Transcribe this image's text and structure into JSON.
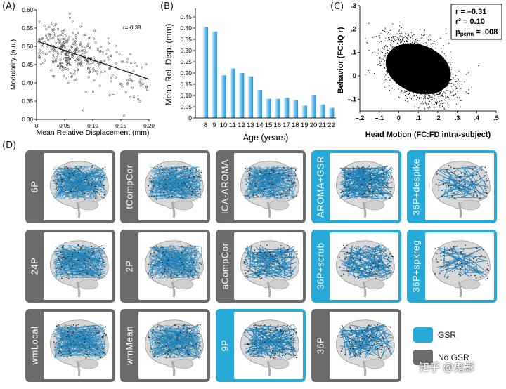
{
  "panel_a": {
    "label": "(A)",
    "annotation": "r=-0.38",
    "chart_data": {
      "type": "scatter",
      "xlabel": "Mean Relative Displacement (mm)",
      "ylabel": "Modularity (a.u.)",
      "xlim": [
        0,
        0.2
      ],
      "ylim": [
        0.3,
        0.6
      ],
      "xticks": [
        "0",
        "0.05",
        "0.10",
        "0.15",
        "0.20"
      ],
      "yticks": [
        "0.30",
        "0.35",
        "0.40",
        "0.45",
        "0.50",
        "0.55",
        "0.60"
      ],
      "fit_line": {
        "x": [
          0,
          0.2
        ],
        "y": [
          0.515,
          0.41
        ]
      },
      "points_description": "dense cloud of about 350 subjects, most with displacement 0.02-0.09 mm and modularity 0.40-0.56"
    }
  },
  "panel_b": {
    "label": "(B)",
    "chart_data": {
      "type": "bar",
      "title": "",
      "xlabel": "Age (years)",
      "ylabel": "Mean Rel. Disp. (mm)",
      "ylim": [
        0,
        0.45
      ],
      "yticks": [
        "0",
        "0.05",
        "0.10",
        "0.15",
        "0.20",
        "0.25",
        "0.30",
        "0.35",
        "0.40",
        "0.45"
      ],
      "categories": [
        "8",
        "9",
        "10",
        "11",
        "12",
        "13",
        "14",
        "15",
        "16",
        "17",
        "18",
        "19",
        "20",
        "21",
        "22"
      ],
      "values": [
        0.405,
        0.385,
        0.19,
        0.22,
        0.2,
        0.185,
        0.125,
        0.085,
        0.085,
        0.09,
        0.08,
        0.055,
        0.1,
        0.06,
        0.045
      ]
    }
  },
  "panel_c": {
    "label": "(C)",
    "stats": {
      "r": "r = –0.31",
      "r2": "r² = 0.10",
      "p_main": "p",
      "p_sub": "perm",
      "p_value": " = .008"
    },
    "chart_data": {
      "type": "scatter",
      "xlabel": "Head Motion (FC:FD intra-subject)",
      "ylabel": "Behavior (FC:IQ r)",
      "xlim": [
        -0.2,
        0.5
      ],
      "ylim": [
        -0.15,
        0.3
      ],
      "xticks": [
        "–.2",
        "–.1",
        "0",
        ".1",
        ".2",
        ".3",
        ".4",
        ".5"
      ],
      "yticks": [
        "–.1",
        "0",
        ".1",
        ".2",
        ".3"
      ],
      "points_description": "very dense black cloud of edges centred near x = 0.1, y = 0.03 with negative slope"
    }
  },
  "panel_d": {
    "label": "(D)",
    "tiles": [
      {
        "label": "6P",
        "gsr": false,
        "density": 1.0
      },
      {
        "label": "tCompCor",
        "gsr": false,
        "density": 1.0
      },
      {
        "label": "ICA-AROMA",
        "gsr": false,
        "density": 0.9
      },
      {
        "label": "AROMA+GSR",
        "gsr": true,
        "density": 0.55
      },
      {
        "label": "36P+despike",
        "gsr": true,
        "density": 0.12
      },
      {
        "label": "24P",
        "gsr": false,
        "density": 1.0
      },
      {
        "label": "2P",
        "gsr": false,
        "density": 0.95
      },
      {
        "label": "aCompCor",
        "gsr": false,
        "density": 0.35
      },
      {
        "label": "36P+scrub",
        "gsr": true,
        "density": 0.3
      },
      {
        "label": "36P+spkreg",
        "gsr": true,
        "density": 0.1
      },
      {
        "label": "wmLocal",
        "gsr": false,
        "density": 1.0
      },
      {
        "label": "wmMean",
        "gsr": false,
        "density": 0.95
      },
      {
        "label": "9P",
        "gsr": true,
        "density": 0.4
      },
      {
        "label": "36P",
        "gsr": false,
        "density": 0.3
      }
    ],
    "legend": {
      "gsr": "GSR",
      "nogsr": "No GSR"
    },
    "colors": {
      "gsr": "#27aad7",
      "nogsr": "#6b6b6b",
      "edge": "#1f7fb5"
    }
  },
  "watermark": "知乎 @鬼影"
}
